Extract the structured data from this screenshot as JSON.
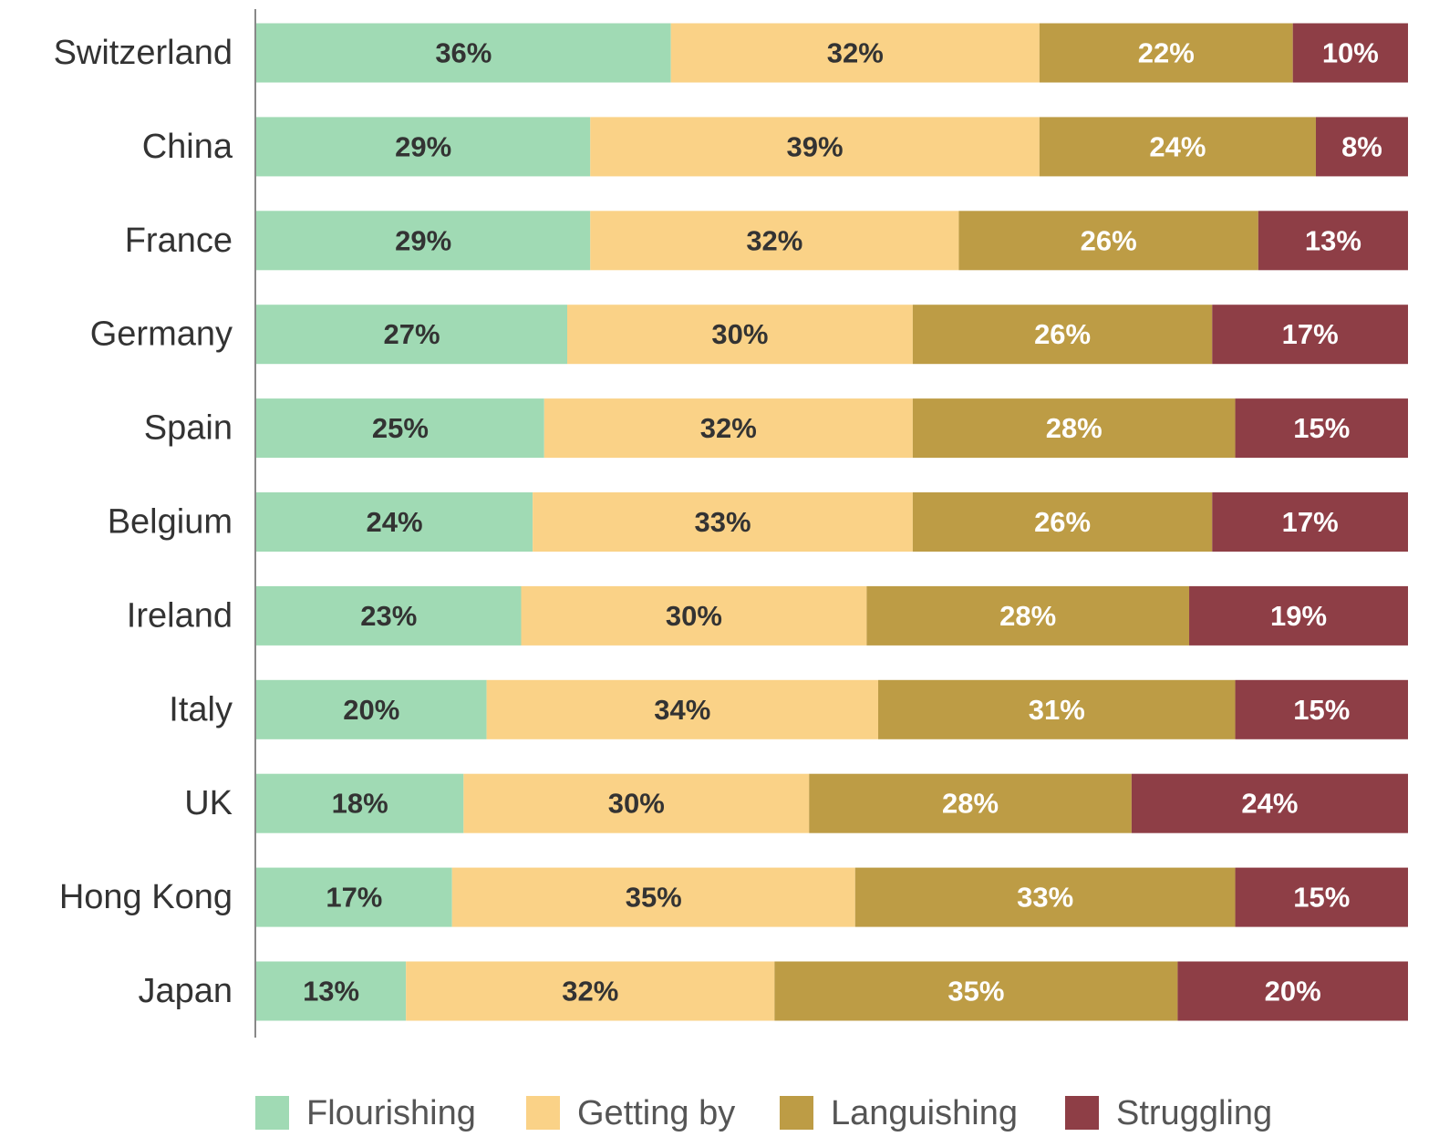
{
  "chart_data": {
    "type": "stacked-bar-horizontal",
    "categories": [
      "Switzerland",
      "China",
      "France",
      "Germany",
      "Spain",
      "Belgium",
      "Ireland",
      "Italy",
      "UK",
      "Hong Kong",
      "Japan"
    ],
    "series": [
      {
        "name": "Flourishing",
        "color": "#a0dab4",
        "label_color": "#333333",
        "values": [
          36,
          29,
          29,
          27,
          25,
          24,
          23,
          20,
          18,
          17,
          13
        ],
        "value_labels": [
          "36%",
          "29%",
          "29%",
          "27%",
          "25%",
          "24%",
          "23%",
          "20%",
          "18%",
          "17%",
          "13%"
        ]
      },
      {
        "name": "Getting by",
        "color": "#fad287",
        "label_color": "#333333",
        "values": [
          32,
          39,
          32,
          30,
          32,
          33,
          30,
          34,
          30,
          35,
          32
        ],
        "value_labels": [
          "32%",
          "39%",
          "32%",
          "30%",
          "32%",
          "33%",
          "30%",
          "34%",
          "30%",
          "35%",
          "32%"
        ]
      },
      {
        "name": "Languishing",
        "color": "#bd9c45",
        "label_color": "#ffffff",
        "values": [
          22,
          24,
          26,
          26,
          28,
          26,
          28,
          31,
          28,
          33,
          35
        ],
        "value_labels": [
          "22%",
          "24%",
          "26%",
          "26%",
          "28%",
          "26%",
          "28%",
          "31%",
          "28%",
          "33%",
          "35%"
        ]
      },
      {
        "name": "Struggling",
        "color": "#8e3e46",
        "label_color": "#ffffff",
        "values": [
          10,
          8,
          13,
          17,
          15,
          17,
          19,
          15,
          24,
          15,
          20
        ],
        "value_labels": [
          "10%",
          "8%",
          "13%",
          "17%",
          "15%",
          "17%",
          "19%",
          "15%",
          "24%",
          "15%",
          "20%"
        ]
      }
    ]
  }
}
